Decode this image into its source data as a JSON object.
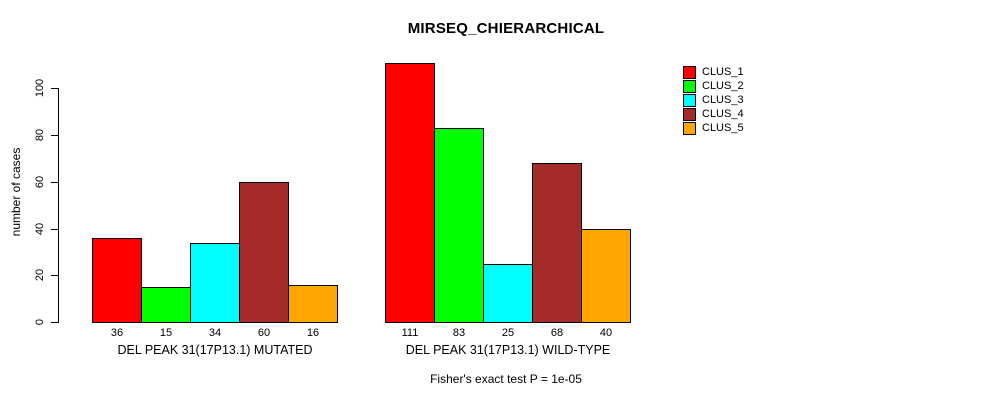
{
  "chart_data": {
    "type": "bar",
    "title": "MIRSEQ_CHIERARCHICAL",
    "ylabel": "number of cases",
    "xlabel": "",
    "annotation": "Fisher's exact test P = 1e-05",
    "yticks": [
      0,
      20,
      40,
      60,
      80,
      100
    ],
    "ylim": [
      0,
      111
    ],
    "grid": false,
    "legend_position": "top-right-outside",
    "bar_value_labels_shown": true,
    "categories": [
      "DEL PEAK 31(17P13.1) MUTATED",
      "DEL PEAK 31(17P13.1) WILD-TYPE"
    ],
    "series": [
      {
        "name": "CLUS_1",
        "color": "#FF0000",
        "values": [
          36,
          111
        ]
      },
      {
        "name": "CLUS_2",
        "color": "#00FF00",
        "values": [
          15,
          83
        ]
      },
      {
        "name": "CLUS_3",
        "color": "#00FFFF",
        "values": [
          34,
          25
        ]
      },
      {
        "name": "CLUS_4",
        "color": "#A52A2A",
        "values": [
          60,
          68
        ]
      },
      {
        "name": "CLUS_5",
        "color": "#FFA500",
        "values": [
          16,
          40
        ]
      }
    ]
  }
}
